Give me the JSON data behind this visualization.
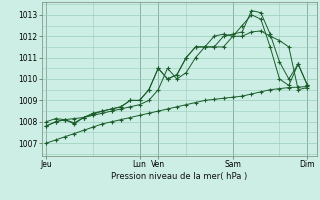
{
  "bg_color": "#cceee4",
  "grid_color": "#99ccbb",
  "line_color": "#1a5c2a",
  "ylabel": "Pression niveau de la mer( hPa )",
  "ylim": [
    1006.4,
    1013.6
  ],
  "yticks": [
    1007,
    1008,
    1009,
    1010,
    1011,
    1012,
    1013
  ],
  "xtick_labels": [
    "Jeu",
    "Lun",
    "Ven",
    "Sam",
    "Dim"
  ],
  "xtick_positions": [
    0,
    10,
    12,
    20,
    28
  ],
  "vline_positions": [
    0,
    10,
    12,
    20,
    28
  ],
  "series": [
    [
      1007.0,
      1007.15,
      1007.3,
      1007.45,
      1007.6,
      1007.75,
      1007.9,
      1008.0,
      1008.1,
      1008.2,
      1008.3,
      1008.4,
      1008.5,
      1008.6,
      1008.7,
      1008.8,
      1008.9,
      1009.0,
      1009.05,
      1009.1,
      1009.15,
      1009.2,
      1009.3,
      1009.4,
      1009.5,
      1009.55,
      1009.6,
      1009.62,
      1009.65
    ],
    [
      1007.8,
      1008.0,
      1008.1,
      1008.15,
      1008.2,
      1008.3,
      1008.4,
      1008.5,
      1008.6,
      1008.7,
      1008.8,
      1009.0,
      1009.5,
      1010.5,
      1010.0,
      1010.3,
      1011.0,
      1011.5,
      1011.5,
      1011.5,
      1012.0,
      1012.0,
      1012.2,
      1012.25,
      1012.0,
      1011.8,
      1011.5,
      1009.5,
      1009.6
    ],
    [
      1008.0,
      1008.15,
      1008.1,
      1007.9,
      1008.2,
      1008.4,
      1008.5,
      1008.6,
      1008.7,
      1009.0,
      1009.0,
      1009.5,
      1010.5,
      1010.0,
      1010.2,
      1011.0,
      1011.5,
      1011.5,
      1011.5,
      1012.0,
      1012.1,
      1012.2,
      1013.2,
      1013.1,
      1012.1,
      1010.8,
      1010.0,
      1010.7,
      1009.7
    ],
    [
      1007.8,
      1008.0,
      1008.1,
      1007.95,
      1008.2,
      1008.35,
      1008.5,
      1008.6,
      1008.7,
      1009.0,
      1009.0,
      1009.5,
      1010.5,
      1010.0,
      1010.2,
      1011.0,
      1011.5,
      1011.5,
      1012.0,
      1012.1,
      1012.0,
      1012.5,
      1013.0,
      1012.8,
      1011.5,
      1010.0,
      1009.7,
      1010.7,
      1009.7
    ]
  ],
  "n_points": 29
}
